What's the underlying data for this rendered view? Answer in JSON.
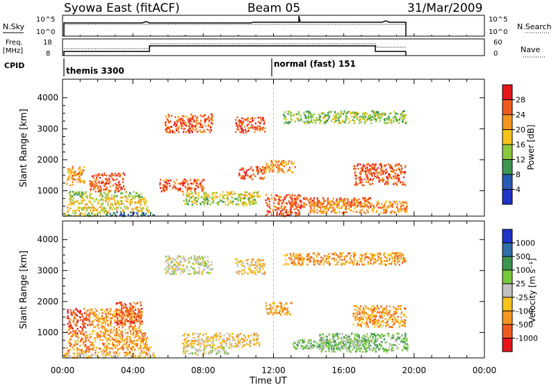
{
  "header": {
    "station": "Syowa East (fitACF)",
    "beam": "Beam 05",
    "date": "31/Mar/2009"
  },
  "panels": {
    "nsky": {
      "label": "N.Sky",
      "ticks_left": [
        "10^5",
        "10^0"
      ],
      "ticks_right": [
        "10^5",
        "10^0"
      ],
      "right_label": "N.Search"
    },
    "freq": {
      "label_line1": "Freq.",
      "label_line2": "[MHz]",
      "ticks_left": [
        "18",
        "8"
      ],
      "ticks_right": [
        "60",
        "0"
      ],
      "right_label": "Nave"
    },
    "cpid": {
      "label": "CPID",
      "programs": [
        {
          "name": "themis 3300",
          "start_hour": 0.0
        },
        {
          "name": "normal (fast) 151",
          "start_hour": 12.0
        }
      ]
    }
  },
  "power_colorbar": {
    "label": "Power [dB]",
    "ticks": [
      "28",
      "24",
      "20",
      "16",
      "12",
      "8",
      "4"
    ],
    "colors": [
      "#e8141c",
      "#f05a1e",
      "#f5961e",
      "#f5c31a",
      "#8cc83c",
      "#3c9650",
      "#285ab4",
      "#1e32c8"
    ]
  },
  "velocity_colorbar": {
    "label": "Velocity [m s⁻¹]",
    "ticks": [
      "1000",
      "500",
      "100",
      "25",
      "-25",
      "-100",
      "-500",
      "-1000"
    ],
    "colors": [
      "#1e32c8",
      "#2f6ea8",
      "#3c9650",
      "#78c83c",
      "#c0c0c0",
      "#f5c31a",
      "#f5961e",
      "#f05a1e",
      "#e8141c"
    ]
  },
  "chart_data": [
    {
      "type": "heatmap",
      "panel": "power",
      "ylabel": "Slant Range [km]",
      "xlabel": "Time UT",
      "x_ticks": [
        "00:00",
        "04:00",
        "08:00",
        "12:00",
        "16:00",
        "20:00",
        "00:00"
      ],
      "y_ticks": [
        "1000",
        "2000",
        "3000",
        "4000"
      ],
      "xlim_hours": [
        0,
        24
      ],
      "ylim_km": [
        180,
        4600
      ],
      "regions": [
        {
          "t": [
            0.0,
            2.6
          ],
          "r": [
            200,
            340
          ],
          "level": 4
        },
        {
          "t": [
            2.6,
            5.2
          ],
          "r": [
            200,
            340
          ],
          "level": 6
        },
        {
          "t": [
            0.2,
            5.0
          ],
          "r": [
            340,
            520
          ],
          "level": 3
        },
        {
          "t": [
            0.3,
            4.8
          ],
          "r": [
            560,
            820
          ],
          "level": 3
        },
        {
          "t": [
            0.3,
            4.5
          ],
          "r": [
            820,
            1000
          ],
          "level": 4
        },
        {
          "t": [
            0.2,
            1.2
          ],
          "r": [
            1200,
            1800
          ],
          "level": 2
        },
        {
          "t": [
            1.5,
            3.5
          ],
          "r": [
            1000,
            1600
          ],
          "level": 1
        },
        {
          "t": [
            5.5,
            8.0
          ],
          "r": [
            1000,
            1400
          ],
          "level": 1
        },
        {
          "t": [
            5.8,
            8.5
          ],
          "r": [
            2900,
            3500
          ],
          "level": 1
        },
        {
          "t": [
            6.8,
            11.0
          ],
          "r": [
            560,
            820
          ],
          "level": 4
        },
        {
          "t": [
            6.8,
            11.2
          ],
          "r": [
            820,
            1000
          ],
          "level": 3
        },
        {
          "t": [
            9.8,
            11.5
          ],
          "r": [
            2900,
            3400
          ],
          "level": 1
        },
        {
          "t": [
            10.0,
            11.5
          ],
          "r": [
            1400,
            1800
          ],
          "level": 1
        },
        {
          "t": [
            11.5,
            13.2
          ],
          "r": [
            1600,
            2000
          ],
          "level": 2
        },
        {
          "t": [
            11.5,
            13.5
          ],
          "r": [
            200,
            900
          ],
          "level": 1
        },
        {
          "t": [
            13.0,
            17.5
          ],
          "r": [
            500,
            800
          ],
          "level": 1
        },
        {
          "t": [
            14.0,
            19.6
          ],
          "r": [
            300,
            700
          ],
          "level": 2
        },
        {
          "t": [
            16.5,
            19.5
          ],
          "r": [
            1200,
            1900
          ],
          "level": 1
        },
        {
          "t": [
            12.5,
            19.5
          ],
          "r": [
            3200,
            3600
          ],
          "level": 4
        }
      ]
    },
    {
      "type": "heatmap",
      "panel": "velocity",
      "ylabel": "Slant Range [km]",
      "xlabel": "Time UT",
      "x_ticks": [
        "00:00",
        "04:00",
        "08:00",
        "12:00",
        "16:00",
        "20:00",
        "00:00"
      ],
      "y_ticks": [
        "1000",
        "2000",
        "3000",
        "4000"
      ],
      "xlim_hours": [
        0,
        24
      ],
      "ylim_km": [
        180,
        4600
      ],
      "regions": [
        {
          "t": [
            0.0,
            5.2
          ],
          "r": [
            200,
            360
          ],
          "level": 5
        },
        {
          "t": [
            0.2,
            5.0
          ],
          "r": [
            360,
            560
          ],
          "level": 6
        },
        {
          "t": [
            0.3,
            4.8
          ],
          "r": [
            560,
            1000
          ],
          "level": 6
        },
        {
          "t": [
            0.2,
            1.5
          ],
          "r": [
            1000,
            1800
          ],
          "level": 7
        },
        {
          "t": [
            1.5,
            4.5
          ],
          "r": [
            1000,
            1800
          ],
          "level": 6
        },
        {
          "t": [
            3.0,
            4.5
          ],
          "r": [
            1300,
            2000
          ],
          "level": 7
        },
        {
          "t": [
            5.8,
            8.5
          ],
          "r": [
            2900,
            3500
          ],
          "level": 4
        },
        {
          "t": [
            6.8,
            11.2
          ],
          "r": [
            560,
            1000
          ],
          "level": 5
        },
        {
          "t": [
            6.8,
            9.5
          ],
          "r": [
            300,
            560
          ],
          "level": 4
        },
        {
          "t": [
            9.8,
            11.5
          ],
          "r": [
            2900,
            3400
          ],
          "level": 5
        },
        {
          "t": [
            11.5,
            13.0
          ],
          "r": [
            1600,
            2000
          ],
          "level": 6
        },
        {
          "t": [
            13.0,
            17.5
          ],
          "r": [
            500,
            800
          ],
          "level": 3
        },
        {
          "t": [
            14.5,
            19.6
          ],
          "r": [
            400,
            1000
          ],
          "level": 3
        },
        {
          "t": [
            16.5,
            19.5
          ],
          "r": [
            1200,
            1900
          ],
          "level": 6
        },
        {
          "t": [
            12.5,
            19.5
          ],
          "r": [
            3200,
            3600
          ],
          "level": 6
        }
      ]
    }
  ]
}
